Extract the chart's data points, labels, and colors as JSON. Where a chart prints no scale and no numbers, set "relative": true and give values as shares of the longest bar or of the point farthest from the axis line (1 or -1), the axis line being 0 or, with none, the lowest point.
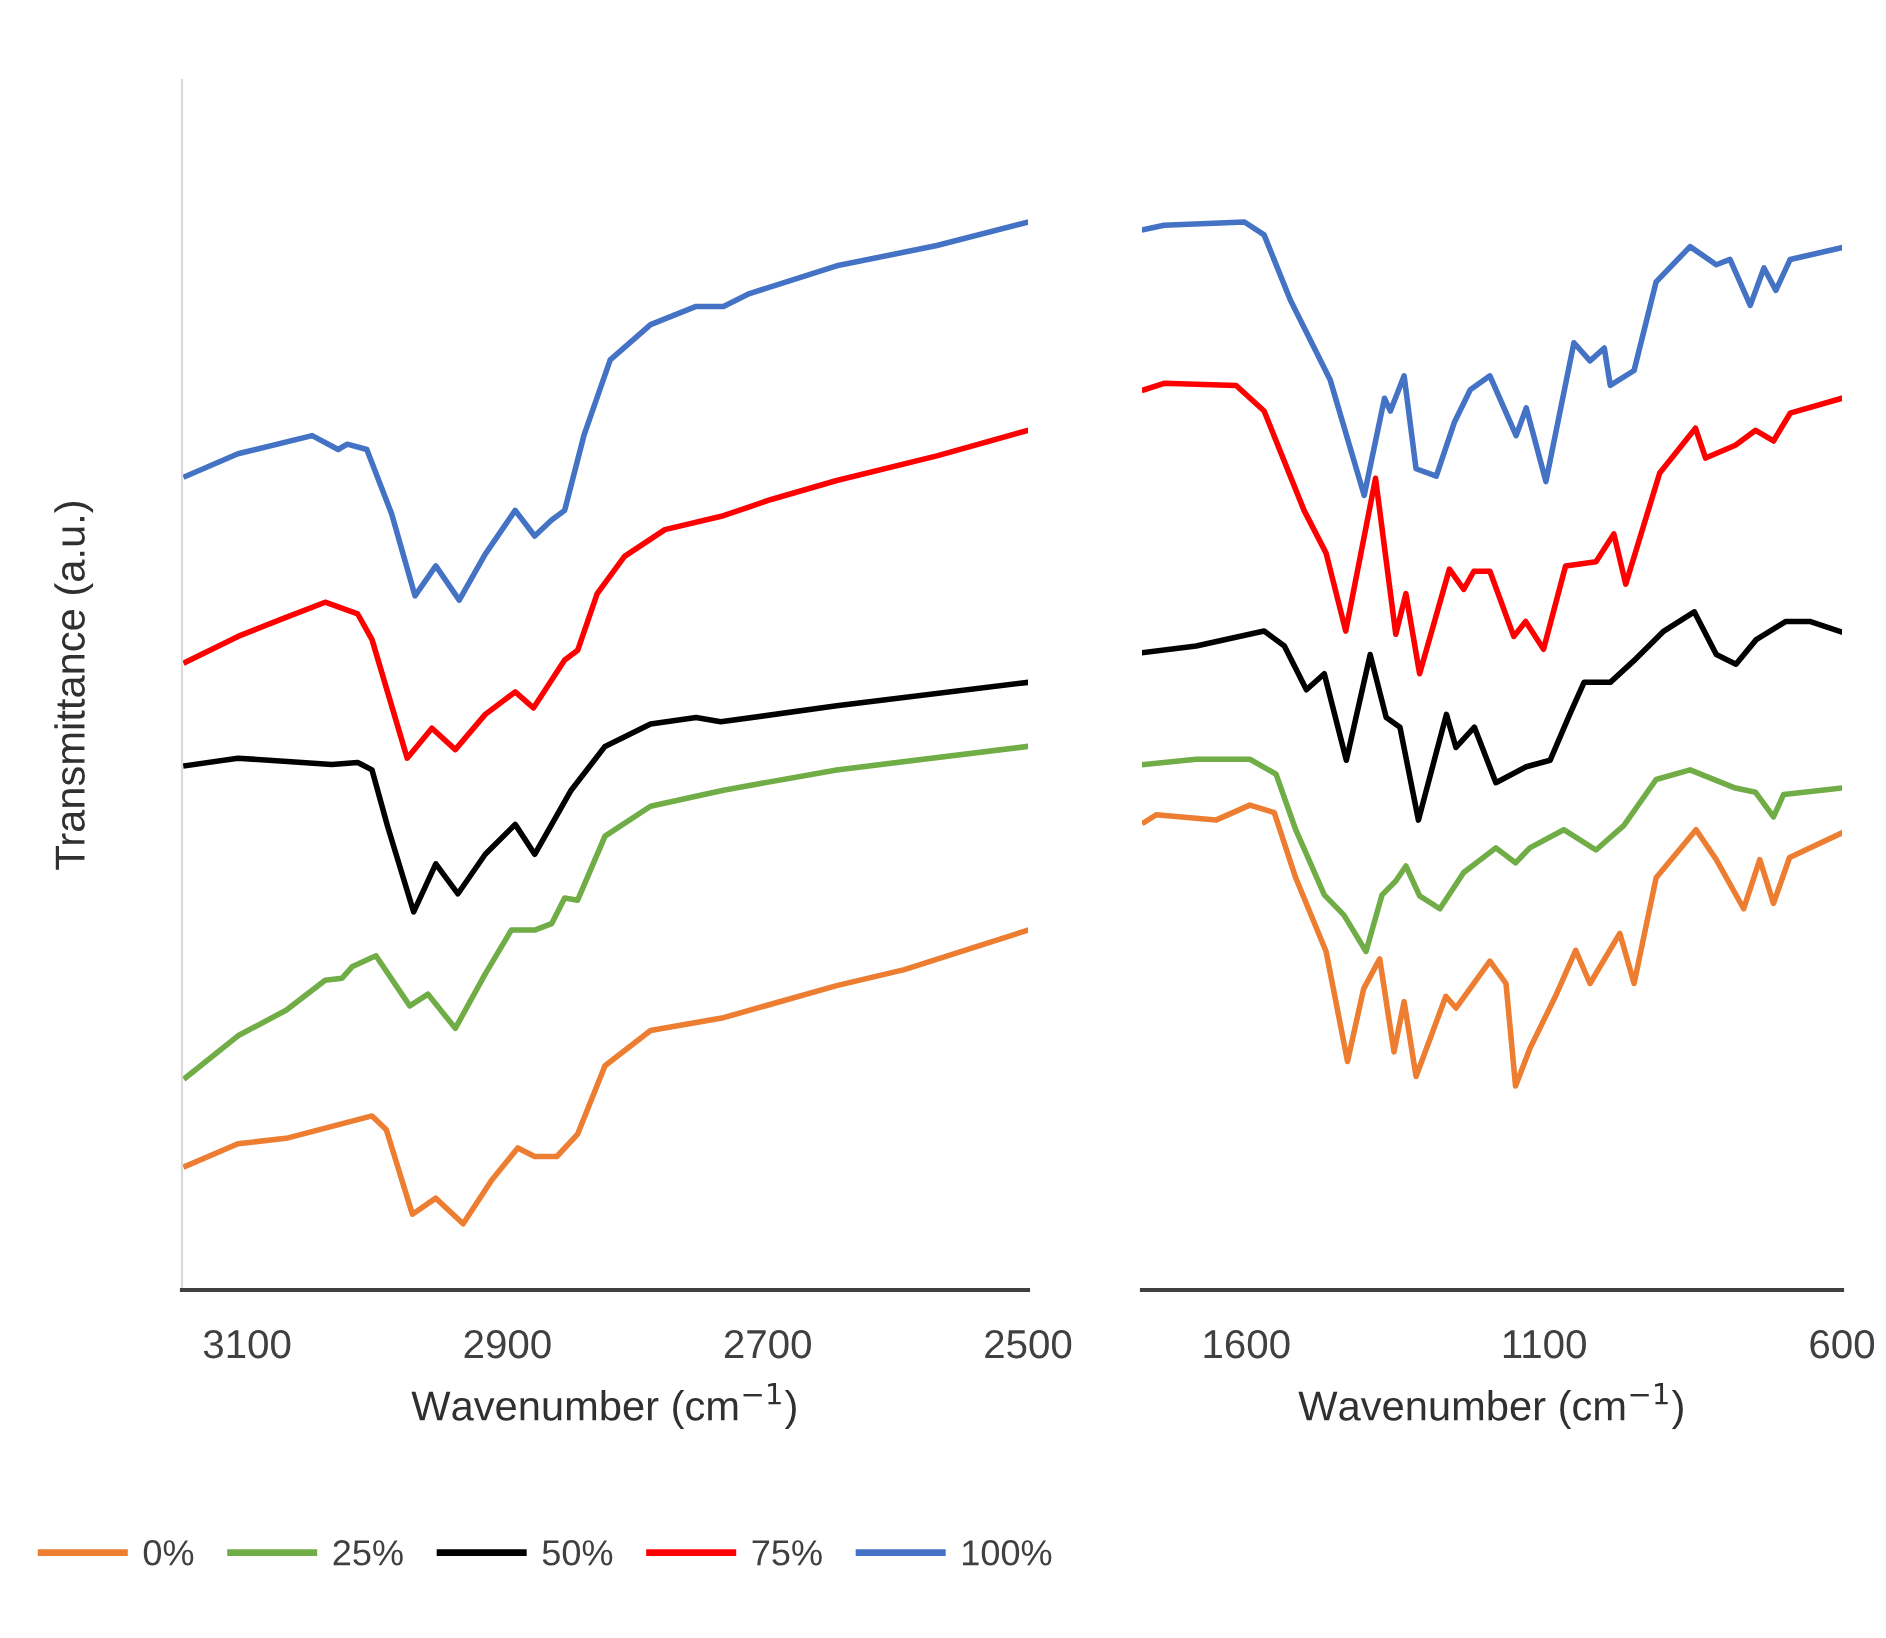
{
  "chart_data": [
    {
      "type": "line",
      "relative": true,
      "xlabel": "Wavenumber (cm$^{−1}$)",
      "ylabel": "Transmittance (a.u.)",
      "xlim": [
        3150,
        2500
      ],
      "xticks": [
        3100,
        2900,
        2700,
        2500
      ],
      "tick_labels": "x",
      "grid": false,
      "legend": "bottom",
      "marker": "none",
      "line_style": "solid",
      "series": [
        {
          "name": "0%",
          "color": "#ed7d31",
          "x": [
            3147,
            3107,
            3070,
            3004,
            2993,
            2973,
            2955,
            2934,
            2912,
            2892,
            2879,
            2862,
            2846,
            2825,
            2790,
            2734,
            2647,
            2595,
            2500
          ],
          "values": [
            0.116,
            0.137,
            0.142,
            0.163,
            0.15,
            0.071,
            0.086,
            0.062,
            0.103,
            0.133,
            0.125,
            0.125,
            0.146,
            0.21,
            0.243,
            0.255,
            0.285,
            0.3,
            0.337
          ]
        },
        {
          "name": "25%",
          "color": "#70ad47",
          "x": [
            3147,
            3107,
            3070,
            3040,
            3027,
            3019,
            3001,
            2975,
            2961,
            2940,
            2917,
            2897,
            2879,
            2866,
            2856,
            2846,
            2825,
            2790,
            2734,
            2647,
            2500
          ],
          "values": [
            0.199,
            0.238,
            0.262,
            0.29,
            0.292,
            0.303,
            0.313,
            0.266,
            0.277,
            0.245,
            0.296,
            0.337,
            0.337,
            0.343,
            0.367,
            0.365,
            0.425,
            0.453,
            0.468,
            0.487,
            0.509
          ]
        },
        {
          "name": "50%",
          "color": "#000000",
          "x": [
            3147,
            3107,
            3035,
            3015,
            3004,
            2992,
            2972,
            2955,
            2938,
            2917,
            2894,
            2879,
            2851,
            2825,
            2790,
            2755,
            2736,
            2647,
            2500
          ],
          "values": [
            0.491,
            0.498,
            0.492,
            0.494,
            0.487,
            0.434,
            0.354,
            0.399,
            0.371,
            0.408,
            0.436,
            0.408,
            0.468,
            0.509,
            0.53,
            0.536,
            0.532,
            0.547,
            0.569
          ]
        },
        {
          "name": "75%",
          "color": "#ff0000",
          "x": [
            3147,
            3107,
            3076,
            3040,
            3015,
            3004,
            2977,
            2958,
            2940,
            2917,
            2894,
            2880,
            2856,
            2846,
            2831,
            2810,
            2779,
            2734,
            2698,
            2647,
            2570,
            2500
          ],
          "values": [
            0.588,
            0.612,
            0.627,
            0.644,
            0.633,
            0.609,
            0.498,
            0.526,
            0.506,
            0.539,
            0.56,
            0.545,
            0.59,
            0.599,
            0.652,
            0.687,
            0.712,
            0.725,
            0.74,
            0.758,
            0.781,
            0.805
          ]
        },
        {
          "name": "100%",
          "color": "#4472c4",
          "x": [
            3147,
            3107,
            3050,
            3030,
            3023,
            3008,
            2989,
            2971,
            2955,
            2937,
            2917,
            2894,
            2879,
            2866,
            2856,
            2841,
            2821,
            2790,
            2755,
            2734,
            2714,
            2647,
            2570,
            2500
          ],
          "values": [
            0.762,
            0.783,
            0.8,
            0.787,
            0.792,
            0.787,
            0.727,
            0.65,
            0.678,
            0.646,
            0.689,
            0.73,
            0.706,
            0.721,
            0.73,
            0.801,
            0.871,
            0.904,
            0.921,
            0.921,
            0.933,
            0.959,
            0.978,
            1.0
          ]
        }
      ]
    },
    {
      "type": "line",
      "relative": true,
      "xlabel": "Wavenumber (cm$^{−1}$)",
      "xlim": [
        1775,
        600
      ],
      "xticks": [
        1600,
        1100,
        600
      ],
      "tick_labels": "x",
      "grid": false,
      "legend": "bottom",
      "marker": "none",
      "line_style": "solid",
      "series": [
        {
          "name": "0%",
          "color": "#ed7d31",
          "x": [
            1771,
            1751,
            1651,
            1594,
            1553,
            1517,
            1466,
            1430,
            1403,
            1376,
            1352,
            1335,
            1315,
            1265,
            1248,
            1191,
            1164,
            1148,
            1124,
            1081,
            1047,
            1023,
            973,
            949,
            912,
            845,
            811,
            765,
            738,
            715,
            688,
            600
          ],
          "values": [
            0.438,
            0.445,
            0.44,
            0.454,
            0.447,
            0.386,
            0.317,
            0.214,
            0.282,
            0.31,
            0.223,
            0.27,
            0.2,
            0.275,
            0.264,
            0.308,
            0.287,
            0.191,
            0.226,
            0.275,
            0.318,
            0.287,
            0.334,
            0.287,
            0.386,
            0.431,
            0.403,
            0.357,
            0.403,
            0.362,
            0.405,
            0.428
          ]
        },
        {
          "name": "25%",
          "color": "#70ad47",
          "x": [
            1771,
            1684,
            1594,
            1550,
            1517,
            1469,
            1436,
            1399,
            1372,
            1349,
            1332,
            1309,
            1275,
            1235,
            1181,
            1148,
            1124,
            1067,
            1013,
            966,
            912,
            855,
            779,
            745,
            715,
            698,
            600
          ],
          "values": [
            0.492,
            0.497,
            0.497,
            0.483,
            0.431,
            0.37,
            0.351,
            0.317,
            0.37,
            0.383,
            0.397,
            0.369,
            0.357,
            0.391,
            0.414,
            0.4,
            0.414,
            0.431,
            0.412,
            0.435,
            0.478,
            0.487,
            0.47,
            0.466,
            0.443,
            0.464,
            0.47
          ]
        },
        {
          "name": "50%",
          "color": "#000000",
          "x": [
            1771,
            1684,
            1570,
            1536,
            1499,
            1469,
            1432,
            1392,
            1365,
            1342,
            1311,
            1264,
            1248,
            1217,
            1181,
            1130,
            1090,
            1057,
            1033,
            989,
            946,
            899,
            848,
            811,
            778,
            744,
            694,
            654,
            600
          ],
          "values": [
            0.597,
            0.603,
            0.617,
            0.603,
            0.562,
            0.577,
            0.496,
            0.595,
            0.536,
            0.527,
            0.44,
            0.539,
            0.508,
            0.527,
            0.475,
            0.49,
            0.496,
            0.539,
            0.569,
            0.569,
            0.591,
            0.617,
            0.635,
            0.595,
            0.586,
            0.609,
            0.626,
            0.626,
            0.616
          ]
        },
        {
          "name": "75%",
          "color": "#ff0000",
          "x": [
            1771,
            1738,
            1617,
            1570,
            1503,
            1466,
            1433,
            1383,
            1349,
            1332,
            1309,
            1259,
            1235,
            1218,
            1191,
            1151,
            1131,
            1101,
            1064,
            1013,
            983,
            963,
            906,
            846,
            829,
            779,
            745,
            715,
            687,
            600
          ],
          "values": [
            0.843,
            0.849,
            0.847,
            0.823,
            0.73,
            0.69,
            0.617,
            0.76,
            0.614,
            0.652,
            0.577,
            0.675,
            0.656,
            0.673,
            0.673,
            0.612,
            0.626,
            0.6,
            0.678,
            0.682,
            0.708,
            0.661,
            0.765,
            0.807,
            0.779,
            0.791,
            0.805,
            0.795,
            0.821,
            0.835
          ]
        },
        {
          "name": "100%",
          "color": "#4472c4",
          "x": [
            1771,
            1738,
            1603,
            1570,
            1526,
            1459,
            1402,
            1368,
            1358,
            1335,
            1315,
            1281,
            1251,
            1224,
            1191,
            1147,
            1130,
            1097,
            1050,
            1023,
            999,
            989,
            949,
            912,
            855,
            811,
            788,
            754,
            731,
            711,
            687,
            600
          ],
          "values": [
            0.993,
            0.997,
            1.0,
            0.988,
            0.927,
            0.852,
            0.744,
            0.835,
            0.823,
            0.856,
            0.769,
            0.762,
            0.812,
            0.843,
            0.856,
            0.8,
            0.826,
            0.757,
            0.887,
            0.87,
            0.882,
            0.847,
            0.861,
            0.944,
            0.977,
            0.96,
            0.965,
            0.922,
            0.957,
            0.936,
            0.965,
            0.976
          ]
        }
      ]
    }
  ]
}
